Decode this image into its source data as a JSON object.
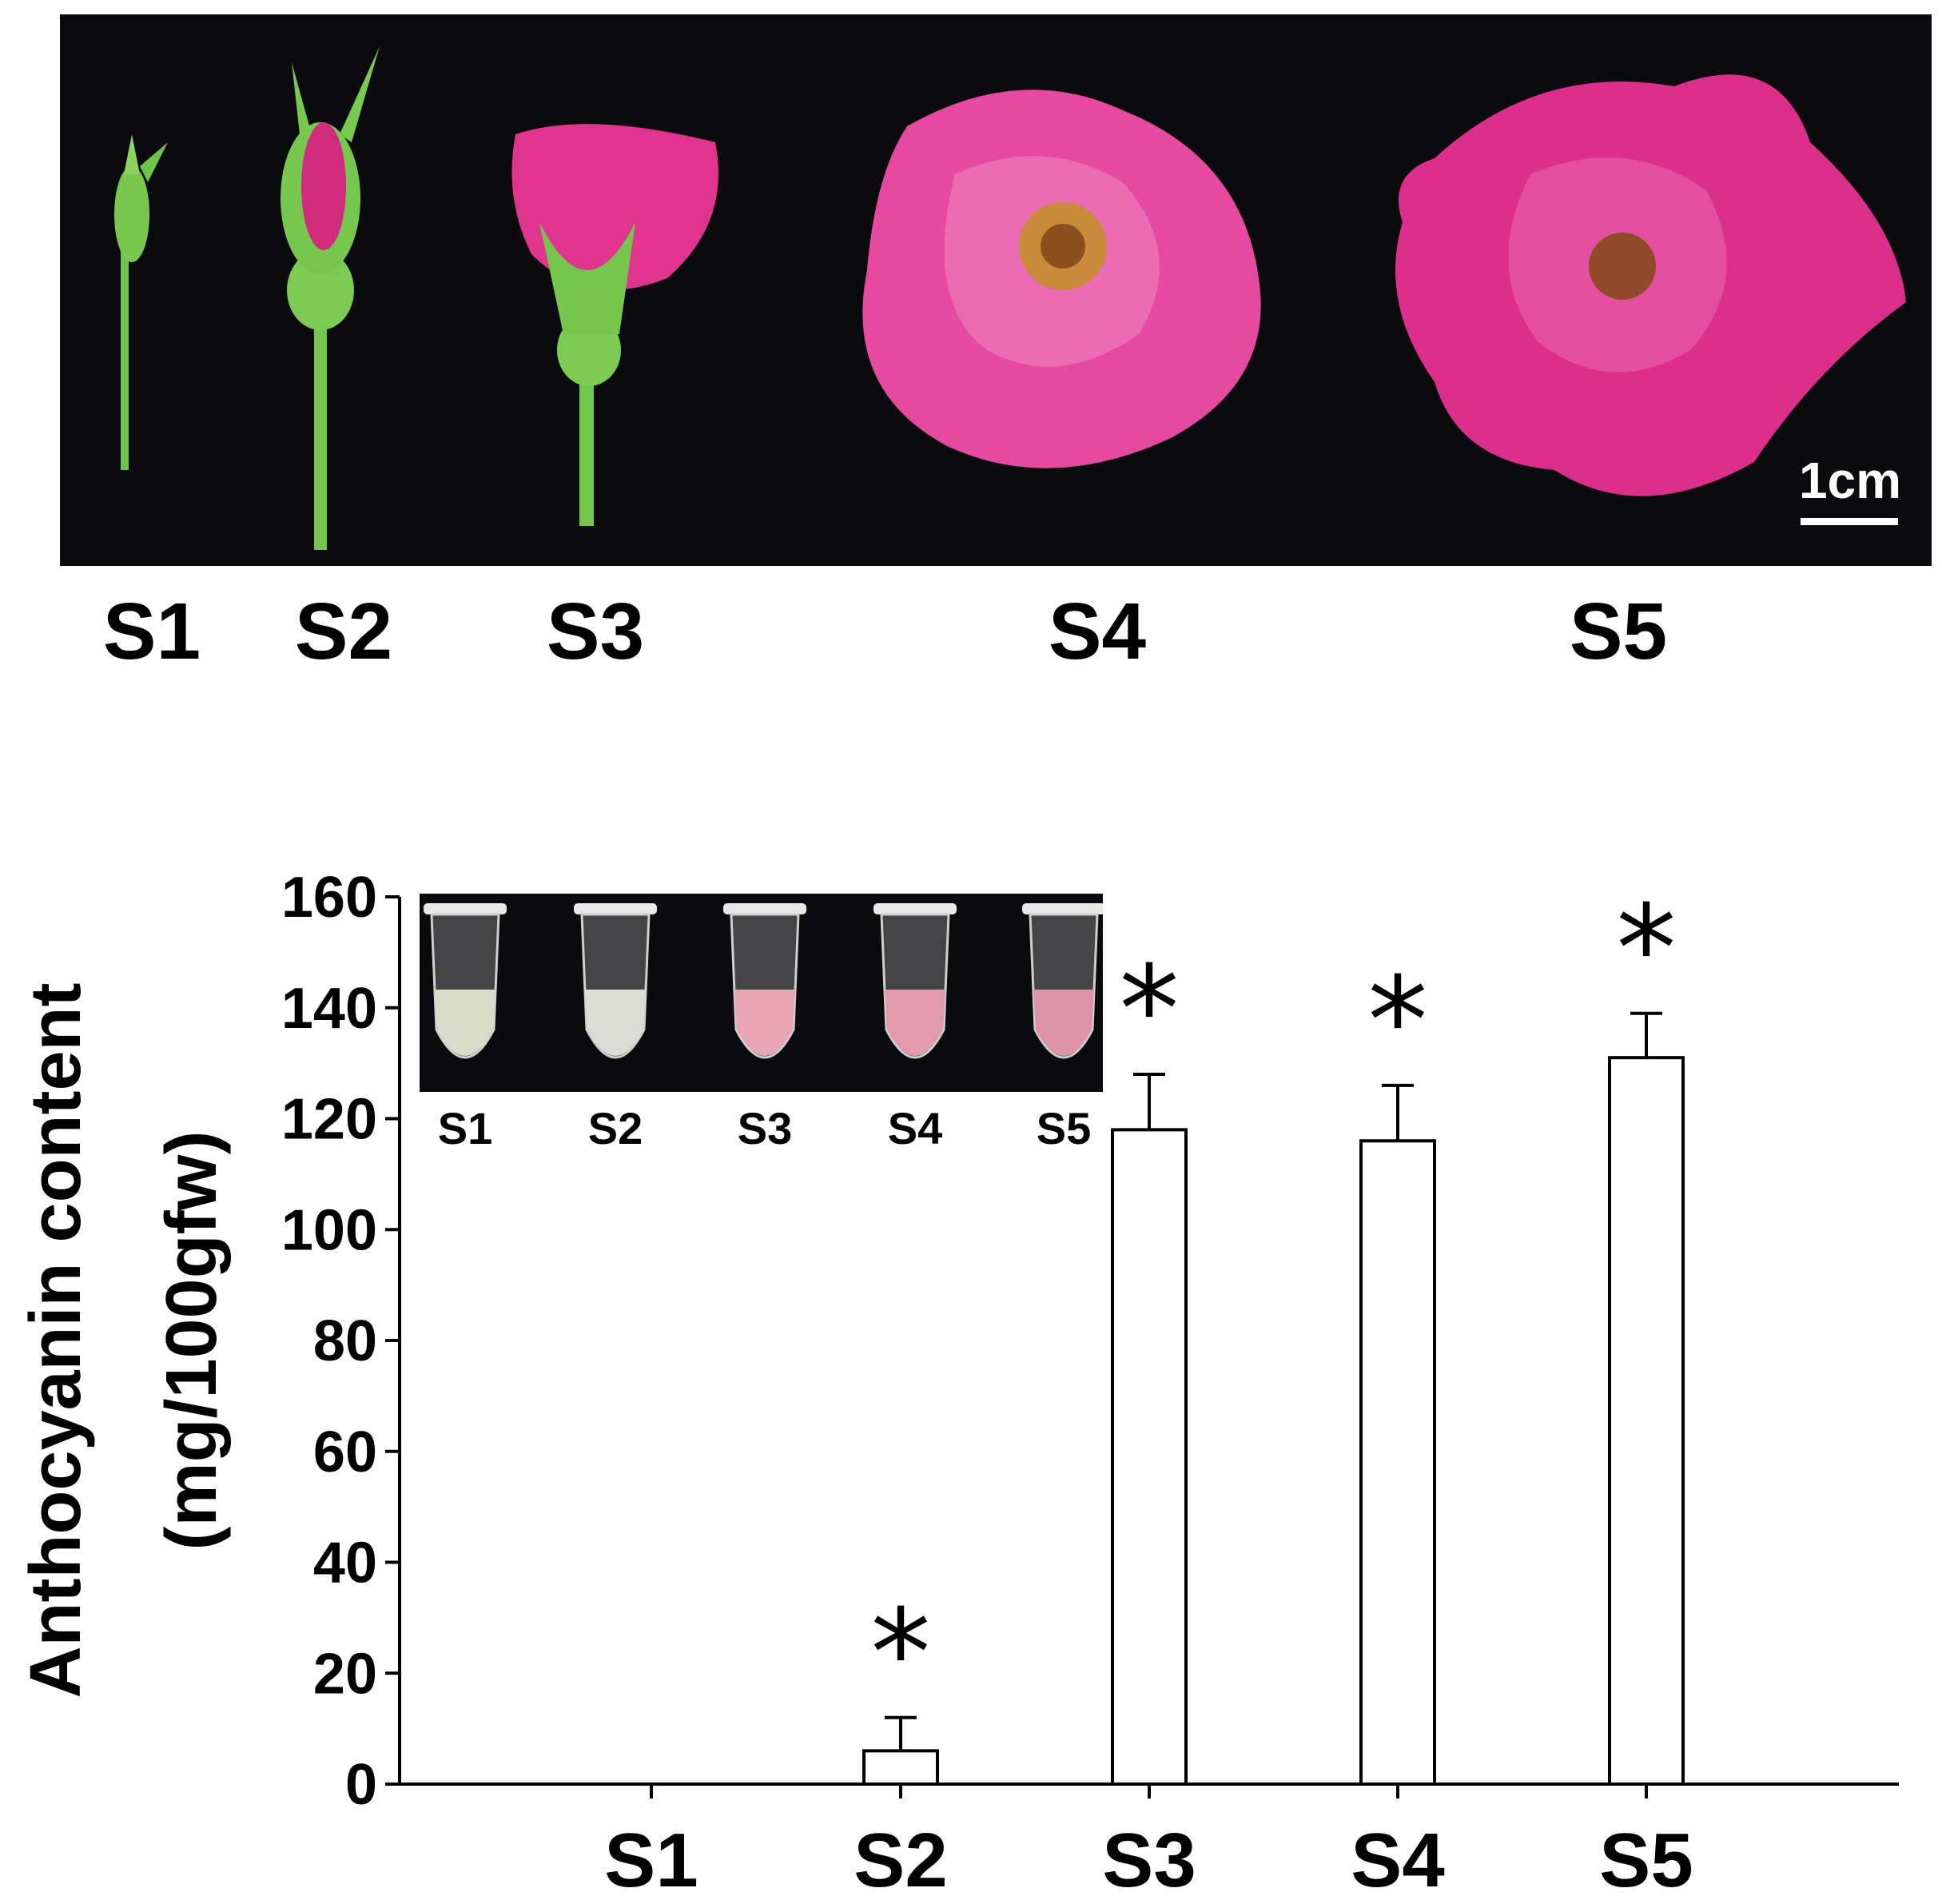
{
  "photo": {
    "scale_bar": "1cm",
    "stage_labels": [
      "S1",
      "S2",
      "S3",
      "S4",
      "S5"
    ],
    "colors": {
      "background": "#0b0b0e",
      "petal": "#e0358f",
      "stem": "#6fc24a"
    }
  },
  "inset": {
    "labels": [
      "S1",
      "S2",
      "S3",
      "S4",
      "S5"
    ],
    "tube_tints": [
      "#d9dcc8",
      "#dcdcd6",
      "#e6a6b6",
      "#e49aae",
      "#df93a9"
    ]
  },
  "chart_data": {
    "type": "bar",
    "categories": [
      "S1",
      "S2",
      "S3",
      "S4",
      "S5"
    ],
    "values": [
      0,
      6,
      118,
      116,
      131
    ],
    "errors": [
      0,
      6,
      10,
      10,
      8
    ],
    "significance": [
      "",
      "*",
      "*",
      "*",
      "*"
    ],
    "ylabel_line1": "Anthocyanin content",
    "ylabel_line2": "(mg/100gfw)",
    "yticks": [
      0,
      20,
      40,
      60,
      80,
      100,
      120,
      140,
      160
    ],
    "ylim": [
      0,
      160
    ],
    "grid": false,
    "bar_fill": "#ffffff",
    "bar_stroke": "#000000"
  }
}
